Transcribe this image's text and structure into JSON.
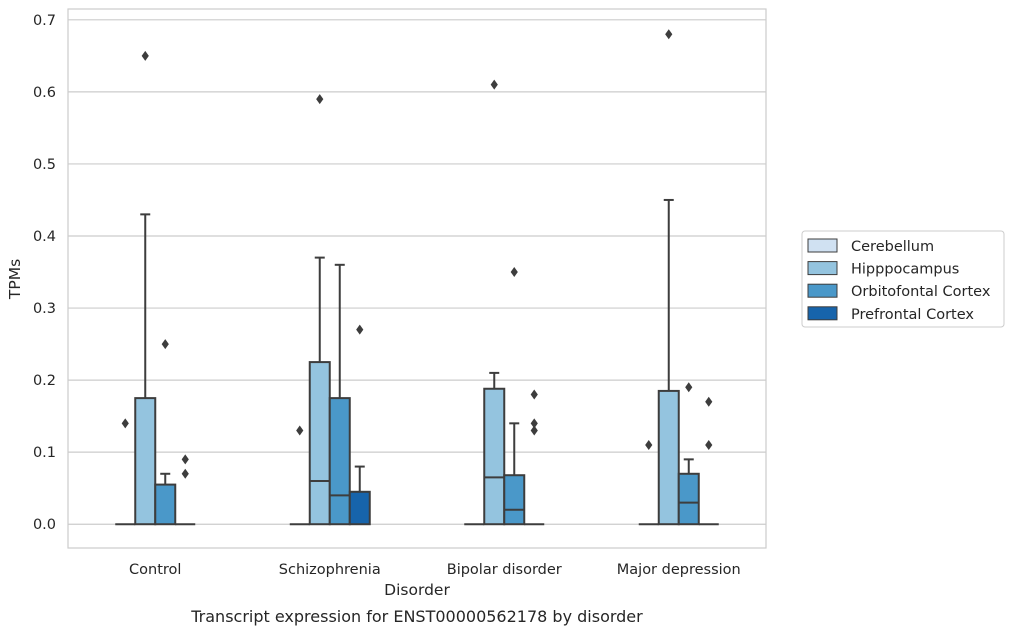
{
  "caption": "Transcript expression for ENST00000562178 by disorder",
  "chart_data": {
    "type": "box",
    "title": "",
    "xlabel": "Disorder",
    "ylabel": "TPMs",
    "ylim": [
      -0.033,
      0.715
    ],
    "yticks": [
      0.0,
      0.1,
      0.2,
      0.3,
      0.4,
      0.5,
      0.6,
      0.7
    ],
    "ytick_labels": [
      "0.0",
      "0.1",
      "0.2",
      "0.3",
      "0.4",
      "0.5",
      "0.6",
      "0.7"
    ],
    "grid": "horizontal",
    "legend_position": "right",
    "categories": [
      "Control",
      "Schizophrenia",
      "Bipolar disorder",
      "Major depression"
    ],
    "series": [
      {
        "name": "Cerebellum",
        "color": "#d0e1f2",
        "boxes": [
          {
            "category": "Control",
            "whisker_low": 0,
            "q1": 0,
            "median": 0,
            "q3": 0,
            "whisker_high": 0,
            "outliers": [
              0.14
            ]
          },
          {
            "category": "Schizophrenia",
            "whisker_low": 0,
            "q1": 0,
            "median": 0,
            "q3": 0,
            "whisker_high": 0,
            "outliers": [
              0.13
            ]
          },
          {
            "category": "Bipolar disorder",
            "whisker_low": 0,
            "q1": 0,
            "median": 0,
            "q3": 0,
            "whisker_high": 0,
            "outliers": []
          },
          {
            "category": "Major depression",
            "whisker_low": 0,
            "q1": 0,
            "median": 0,
            "q3": 0,
            "whisker_high": 0,
            "outliers": [
              0.11
            ]
          }
        ]
      },
      {
        "name": "Hipppocampus",
        "color": "#94c4df",
        "boxes": [
          {
            "category": "Control",
            "whisker_low": 0,
            "q1": 0,
            "median": 0,
            "q3": 0.175,
            "whisker_high": 0.43,
            "outliers": [
              0.65
            ]
          },
          {
            "category": "Schizophrenia",
            "whisker_low": 0,
            "q1": 0,
            "median": 0.06,
            "q3": 0.225,
            "whisker_high": 0.37,
            "outliers": [
              0.59
            ]
          },
          {
            "category": "Bipolar disorder",
            "whisker_low": 0,
            "q1": 0,
            "median": 0.065,
            "q3": 0.188,
            "whisker_high": 0.21,
            "outliers": [
              0.61
            ]
          },
          {
            "category": "Major depression",
            "whisker_low": 0,
            "q1": 0,
            "median": 0,
            "q3": 0.185,
            "whisker_high": 0.45,
            "outliers": [
              0.68
            ]
          }
        ]
      },
      {
        "name": "Orbitofontal Cortex",
        "color": "#4a98c9",
        "boxes": [
          {
            "category": "Control",
            "whisker_low": 0,
            "q1": 0,
            "median": 0,
            "q3": 0.055,
            "whisker_high": 0.07,
            "outliers": [
              0.25
            ]
          },
          {
            "category": "Schizophrenia",
            "whisker_low": 0,
            "q1": 0,
            "median": 0.04,
            "q3": 0.175,
            "whisker_high": 0.36,
            "outliers": []
          },
          {
            "category": "Bipolar disorder",
            "whisker_low": 0,
            "q1": 0,
            "median": 0.02,
            "q3": 0.068,
            "whisker_high": 0.14,
            "outliers": [
              0.35
            ]
          },
          {
            "category": "Major depression",
            "whisker_low": 0,
            "q1": 0,
            "median": 0.03,
            "q3": 0.07,
            "whisker_high": 0.09,
            "outliers": [
              0.19
            ]
          }
        ]
      },
      {
        "name": "Prefrontal Cortex",
        "color": "#1764ab",
        "boxes": [
          {
            "category": "Control",
            "whisker_low": 0,
            "q1": 0,
            "median": 0,
            "q3": 0,
            "whisker_high": 0,
            "outliers": [
              0.09,
              0.07
            ]
          },
          {
            "category": "Schizophrenia",
            "whisker_low": 0,
            "q1": 0,
            "median": 0,
            "q3": 0.045,
            "whisker_high": 0.08,
            "outliers": [
              0.27
            ]
          },
          {
            "category": "Bipolar disorder",
            "whisker_low": 0,
            "q1": 0,
            "median": 0,
            "q3": 0,
            "whisker_high": 0,
            "outliers": [
              0.18,
              0.14,
              0.13
            ]
          },
          {
            "category": "Major depression",
            "whisker_low": 0,
            "q1": 0,
            "median": 0,
            "q3": 0,
            "whisker_high": 0,
            "outliers": [
              0.17,
              0.11
            ]
          }
        ]
      }
    ]
  }
}
